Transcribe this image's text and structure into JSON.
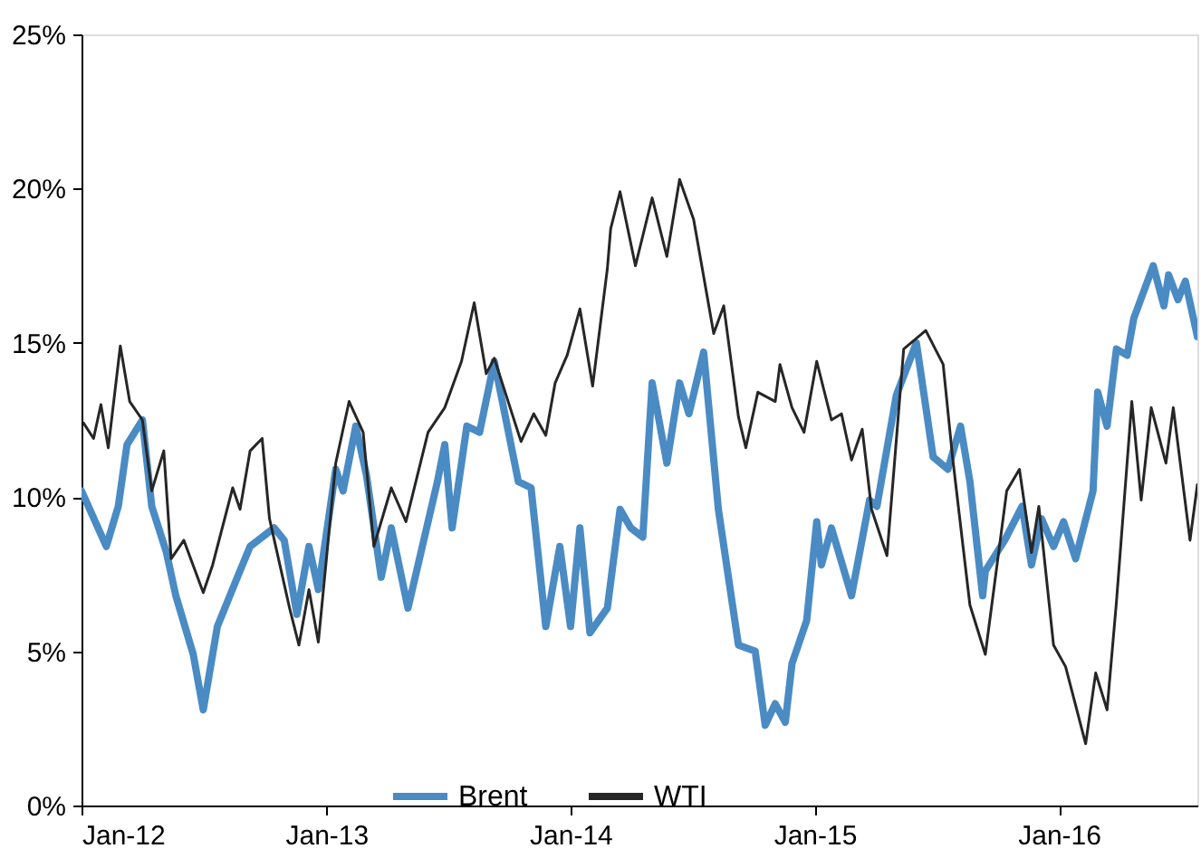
{
  "chart_data": {
    "type": "line",
    "xlim": [
      "2012-01-01",
      "2016-07-26"
    ],
    "xticks": [
      {
        "value": "2012-01-01",
        "label": "Jan-12"
      },
      {
        "value": "2013-01-01",
        "label": "Jan-13"
      },
      {
        "value": "2014-01-01",
        "label": "Jan-14"
      },
      {
        "value": "2015-01-01",
        "label": "Jan-15"
      },
      {
        "value": "2016-01-01",
        "label": "Jan-16"
      }
    ],
    "ylim": [
      0,
      25
    ],
    "yticks": [
      {
        "value": 0,
        "label": "0%"
      },
      {
        "value": 5,
        "label": "5%"
      },
      {
        "value": 10,
        "label": "10%"
      },
      {
        "value": 15,
        "label": "15%"
      },
      {
        "value": 20,
        "label": "20%"
      },
      {
        "value": 25,
        "label": "25%"
      }
    ],
    "grid": false,
    "legend": "bottom",
    "series": [
      {
        "name": "Brent",
        "color": "#4a8bc4",
        "x": [
          "2012-01-01",
          "2012-02-07",
          "2012-02-25",
          "2012-03-09",
          "2012-04-01",
          "2012-04-15",
          "2012-05-07",
          "2012-05-21",
          "2012-06-16",
          "2012-07-01",
          "2012-07-22",
          "2012-08-21",
          "2012-09-09",
          "2012-10-15",
          "2012-10-30",
          "2012-11-18",
          "2012-12-06",
          "2012-12-20",
          "2013-01-15",
          "2013-01-26",
          "2013-02-14",
          "2013-03-02",
          "2013-03-24",
          "2013-04-08",
          "2013-05-03",
          "2013-06-16",
          "2013-06-27",
          "2013-07-08",
          "2013-07-30",
          "2013-08-18",
          "2013-09-09",
          "2013-10-15",
          "2013-11-03",
          "2013-11-25",
          "2013-12-16",
          "2014-01-01",
          "2014-01-15",
          "2014-01-30",
          "2014-02-25",
          "2014-03-16",
          "2014-04-01",
          "2014-04-19",
          "2014-05-03",
          "2014-05-25",
          "2014-06-13",
          "2014-06-27",
          "2014-07-19",
          "2014-08-10",
          "2014-09-09",
          "2014-10-04",
          "2014-10-19",
          "2014-11-03",
          "2014-11-18",
          "2014-11-28",
          "2014-12-20",
          "2015-01-04",
          "2015-01-11",
          "2015-01-26",
          "2015-02-25",
          "2015-03-24",
          "2015-04-04",
          "2015-05-03",
          "2015-06-02",
          "2015-06-27",
          "2015-07-19",
          "2015-08-07",
          "2015-08-21",
          "2015-09-09",
          "2015-09-13",
          "2015-10-12",
          "2015-11-07",
          "2015-11-21",
          "2015-12-06",
          "2015-12-24",
          "2016-01-08",
          "2016-01-26",
          "2016-02-21",
          "2016-02-28",
          "2016-03-13",
          "2016-03-27",
          "2016-04-12",
          "2016-04-22",
          "2016-05-21",
          "2016-06-06",
          "2016-06-13",
          "2016-06-27",
          "2016-07-08",
          "2016-07-26"
        ],
        "values": [
          10.2,
          8.4,
          9.7,
          11.7,
          12.5,
          9.7,
          8.2,
          6.8,
          4.9,
          3.1,
          5.8,
          7.4,
          8.4,
          9.0,
          8.6,
          6.2,
          8.4,
          7.0,
          10.9,
          10.2,
          12.3,
          10.7,
          7.4,
          9.0,
          6.4,
          10.5,
          11.7,
          9.0,
          12.3,
          12.1,
          14.4,
          10.5,
          10.3,
          5.8,
          8.4,
          5.8,
          9.0,
          5.6,
          6.4,
          9.6,
          9.0,
          8.7,
          13.7,
          11.1,
          13.7,
          12.7,
          14.7,
          9.6,
          5.2,
          5.0,
          2.6,
          3.3,
          2.7,
          4.6,
          6.0,
          9.2,
          7.8,
          9.0,
          6.8,
          9.9,
          9.7,
          13.3,
          15.0,
          11.3,
          10.9,
          12.3,
          10.5,
          6.8,
          7.6,
          8.6,
          9.7,
          7.8,
          9.3,
          8.4,
          9.2,
          8.0,
          10.2,
          13.4,
          12.3,
          14.8,
          14.6,
          15.8,
          17.5,
          16.2,
          17.2,
          16.4,
          17.0,
          15.2
        ]
      },
      {
        "name": "WTI",
        "color": "#262626",
        "x": [
          "2012-01-04",
          "2012-01-19",
          "2012-01-30",
          "2012-02-10",
          "2012-02-28",
          "2012-03-13",
          "2012-04-01",
          "2012-04-15",
          "2012-05-03",
          "2012-05-14",
          "2012-06-02",
          "2012-07-01",
          "2012-07-15",
          "2012-08-14",
          "2012-08-25",
          "2012-09-09",
          "2012-09-27",
          "2012-10-08",
          "2012-11-07",
          "2012-11-21",
          "2012-12-06",
          "2012-12-20",
          "2013-01-15",
          "2013-02-04",
          "2013-02-25",
          "2013-03-13",
          "2013-04-08",
          "2013-04-30",
          "2013-06-02",
          "2013-06-27",
          "2013-07-22",
          "2013-08-10",
          "2013-08-28",
          "2013-09-09",
          "2013-10-19",
          "2013-11-07",
          "2013-11-25",
          "2013-12-09",
          "2013-12-27",
          "2014-01-15",
          "2014-02-03",
          "2014-02-25",
          "2014-03-02",
          "2014-03-16",
          "2014-04-08",
          "2014-05-03",
          "2014-05-25",
          "2014-06-13",
          "2014-07-04",
          "2014-08-03",
          "2014-08-18",
          "2014-09-09",
          "2014-09-20",
          "2014-10-08",
          "2014-11-03",
          "2014-11-10",
          "2014-11-28",
          "2014-12-16",
          "2015-01-04",
          "2015-01-26",
          "2015-02-10",
          "2015-02-25",
          "2015-03-13",
          "2015-03-27",
          "2015-04-19",
          "2015-05-14",
          "2015-06-16",
          "2015-07-12",
          "2015-07-26",
          "2015-08-21",
          "2015-09-13",
          "2015-10-15",
          "2015-11-03",
          "2015-11-21",
          "2015-12-02",
          "2015-12-24",
          "2016-01-11",
          "2016-02-10",
          "2016-02-25",
          "2016-03-13",
          "2016-03-27",
          "2016-04-19",
          "2016-05-03",
          "2016-05-18",
          "2016-06-09",
          "2016-06-20",
          "2016-07-15",
          "2016-07-26"
        ],
        "values": [
          12.4,
          11.9,
          13.0,
          11.6,
          14.9,
          13.1,
          12.5,
          10.2,
          11.5,
          8.0,
          8.6,
          6.9,
          7.8,
          10.3,
          9.6,
          11.5,
          11.9,
          9.3,
          6.4,
          5.2,
          7.0,
          5.3,
          11.1,
          13.1,
          12.1,
          8.4,
          10.3,
          9.2,
          12.1,
          12.9,
          14.4,
          16.3,
          14.0,
          14.5,
          11.8,
          12.7,
          12.0,
          13.7,
          14.6,
          16.1,
          13.6,
          17.4,
          18.7,
          19.9,
          17.5,
          19.7,
          17.8,
          20.3,
          19.0,
          15.3,
          16.2,
          12.6,
          11.6,
          13.4,
          13.1,
          14.3,
          12.9,
          12.1,
          14.4,
          12.5,
          12.7,
          11.2,
          12.2,
          9.6,
          8.1,
          14.8,
          15.4,
          14.3,
          11.3,
          6.5,
          4.9,
          10.2,
          10.9,
          8.2,
          9.7,
          5.2,
          4.5,
          2.0,
          4.3,
          3.1,
          6.6,
          13.1,
          9.9,
          12.9,
          11.1,
          12.9,
          8.6,
          10.4
        ]
      }
    ]
  }
}
